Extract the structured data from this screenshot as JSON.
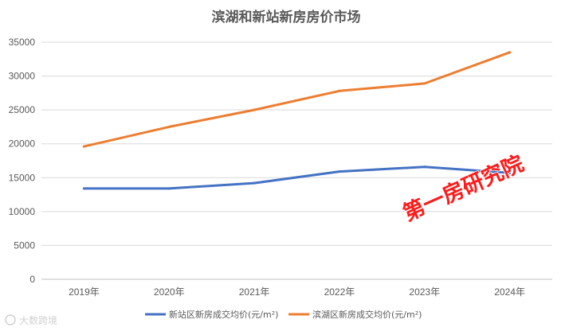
{
  "chart_data": {
    "type": "line",
    "title": "滨湖和新站新房房价市场",
    "categories": [
      "2019年",
      "2020年",
      "2021年",
      "2022年",
      "2023年",
      "2024年"
    ],
    "series": [
      {
        "name": "新站区新房成交均价(元/m²)",
        "color": "#4472C4",
        "values": [
          13400,
          13400,
          14200,
          15900,
          16600,
          15700
        ]
      },
      {
        "name": "滨湖区新房成交均价(元/m²)",
        "color": "#ED7D31",
        "values": [
          19600,
          22500,
          25000,
          27800,
          28900,
          33500
        ]
      }
    ],
    "ylim": [
      0,
      35000
    ],
    "yticks": [
      0,
      5000,
      10000,
      15000,
      20000,
      25000,
      30000,
      35000
    ],
    "grid": true,
    "legend": "bottom",
    "watermark": "第一房研究院",
    "corner_mark": "大数跨境"
  }
}
